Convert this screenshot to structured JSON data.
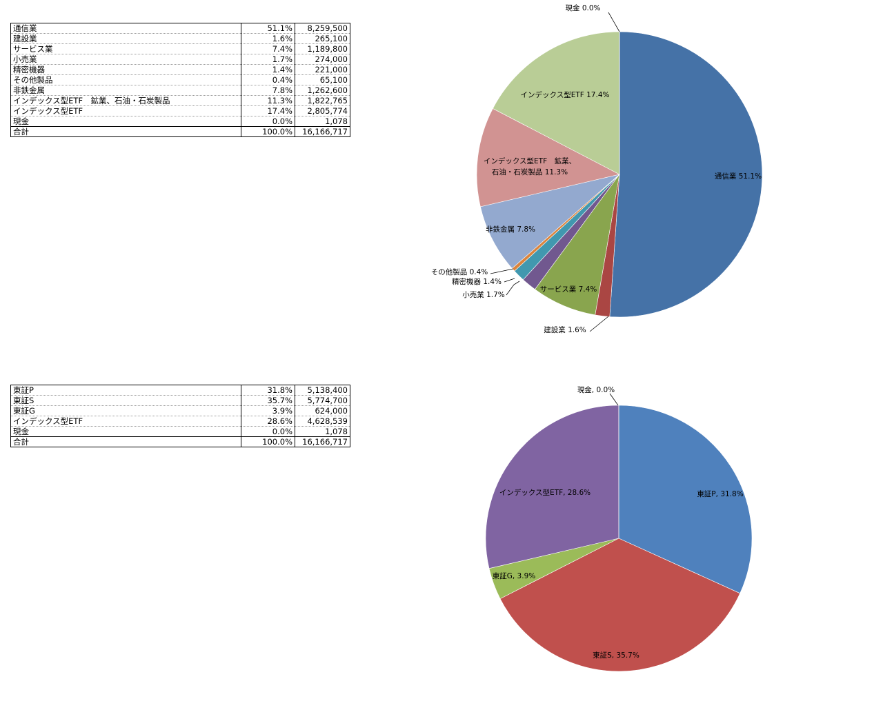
{
  "tables": [
    {
      "rows": [
        {
          "label": "通信業",
          "pct": "51.1%",
          "amount": "8,259,500"
        },
        {
          "label": "建設業",
          "pct": "1.6%",
          "amount": "265,100"
        },
        {
          "label": "サービス業",
          "pct": "7.4%",
          "amount": "1,189,800"
        },
        {
          "label": "小売業",
          "pct": "1.7%",
          "amount": "274,000"
        },
        {
          "label": "精密機器",
          "pct": "1.4%",
          "amount": "221,000"
        },
        {
          "label": "その他製品",
          "pct": "0.4%",
          "amount": "65,100"
        },
        {
          "label": "非鉄金属",
          "pct": "7.8%",
          "amount": "1,262,600"
        },
        {
          "label": "インデックス型ETF　鉱業、石油・石炭製品",
          "pct": "11.3%",
          "amount": "1,822,765"
        },
        {
          "label": "インデックス型ETF",
          "pct": "17.4%",
          "amount": "2,805,774"
        },
        {
          "label": "現金",
          "pct": "0.0%",
          "amount": "1,078"
        }
      ],
      "total": {
        "label": "合計",
        "pct": "100.0%",
        "amount": "16,166,717"
      }
    },
    {
      "rows": [
        {
          "label": "東証P",
          "pct": "31.8%",
          "amount": "5,138,400"
        },
        {
          "label": "東証S",
          "pct": "35.7%",
          "amount": "5,774,700"
        },
        {
          "label": "東証G",
          "pct": "3.9%",
          "amount": "624,000"
        },
        {
          "label": "インデックス型ETF",
          "pct": "28.6%",
          "amount": "4,628,539"
        },
        {
          "label": "現金",
          "pct": "0.0%",
          "amount": "1,078"
        }
      ],
      "total": {
        "label": "合計",
        "pct": "100.0%",
        "amount": "16,166,717"
      }
    }
  ],
  "chart_data": [
    {
      "type": "pie",
      "slices": [
        {
          "name": "通信業",
          "value": 8259500,
          "label": "通信業 51.1%",
          "color": "#4572a7"
        },
        {
          "name": "建設業",
          "value": 265100,
          "label": "建設業 1.6%",
          "color": "#aa4643"
        },
        {
          "name": "サービス業",
          "value": 1189800,
          "label": "サービス業 7.4%",
          "color": "#89a54e"
        },
        {
          "name": "小売業",
          "value": 274000,
          "label": "小売業 1.7%",
          "color": "#71588f"
        },
        {
          "name": "精密機器",
          "value": 221000,
          "label": "精密機器 1.4%",
          "color": "#4198af"
        },
        {
          "name": "その他製品",
          "value": 65100,
          "label": "その他製品 0.4%",
          "color": "#db843d"
        },
        {
          "name": "非鉄金属",
          "value": 1262600,
          "label": "非鉄金属 7.8%",
          "color": "#93a9cf"
        },
        {
          "name": "インデックス型ETF　鉱業、石油・石炭製品",
          "value": 1822765,
          "label": [
            "インデックス型ETF　鉱業、",
            "石油・石炭製品 11.3%"
          ],
          "color": "#d19392"
        },
        {
          "name": "インデックス型ETF",
          "value": 2805774,
          "label": "インデックス型ETF 17.4%",
          "color": "#b9cd96"
        },
        {
          "name": "現金",
          "value": 1078,
          "label": "現金 0.0%",
          "color": "#a99bbd"
        }
      ]
    },
    {
      "type": "pie",
      "slices": [
        {
          "name": "東証P",
          "value": 5138400,
          "label": "東証P, 31.8%",
          "color": "#4f81bd"
        },
        {
          "name": "東証S",
          "value": 5774700,
          "label": "東証S, 35.7%",
          "color": "#c0504d"
        },
        {
          "name": "東証G",
          "value": 624000,
          "label": "東証G, 3.9%",
          "color": "#9bbb59"
        },
        {
          "name": "インデックス型ETF",
          "value": 4628539,
          "label": "インデックス型ETF, 28.6%",
          "color": "#8064a2"
        },
        {
          "name": "現金",
          "value": 1078,
          "label": "現金, 0.0%",
          "color": "#4bacc6"
        }
      ]
    }
  ]
}
